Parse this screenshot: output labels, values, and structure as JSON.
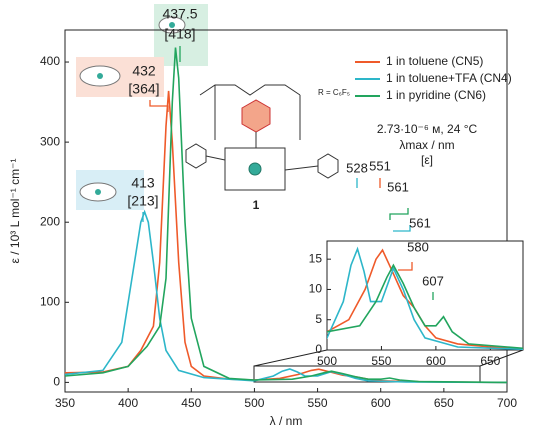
{
  "chart_data": {
    "type": "line",
    "x_label": "λ / nm",
    "y_label": "ε / 10³ L mol⁻¹ cm⁻¹",
    "xlim": [
      350,
      700
    ],
    "xticks": [
      350,
      400,
      450,
      500,
      550,
      600,
      650,
      700
    ],
    "ylim": [
      -12,
      440
    ],
    "yticks": [
      0,
      100,
      200,
      300,
      400
    ],
    "series": [
      {
        "name": "1 in toluene (CN5)",
        "color": "#ef5a2a",
        "x": [
          350,
          380,
          400,
          410,
          420,
          425,
          430,
          432,
          435,
          440,
          445,
          450,
          460,
          480,
          500,
          520,
          535,
          545,
          551,
          560,
          570,
          580,
          590,
          600,
          620,
          650,
          700
        ],
        "values": [
          12,
          13,
          20,
          40,
          70,
          150,
          320,
          364,
          300,
          150,
          50,
          20,
          8,
          4,
          3,
          5,
          10,
          15,
          16.5,
          13,
          9,
          7,
          4,
          2,
          1,
          0.5,
          0
        ]
      },
      {
        "name": "1 in toluene+TFA (CN4)",
        "color": "#2db6c9",
        "x": [
          350,
          380,
          395,
          405,
          410,
          413,
          416,
          420,
          425,
          430,
          440,
          460,
          500,
          515,
          522,
          528,
          534,
          540,
          550,
          561,
          570,
          580,
          590,
          620,
          700
        ],
        "values": [
          10,
          15,
          50,
          150,
          200,
          213,
          200,
          150,
          80,
          40,
          15,
          6,
          2,
          8,
          14,
          16.7,
          13,
          8,
          8,
          13.5,
          10,
          5,
          2,
          0.5,
          0
        ]
      },
      {
        "name": "1 in pyridine (CN6)",
        "color": "#22a55e",
        "x": [
          350,
          380,
          400,
          415,
          425,
          430,
          435,
          437.5,
          440,
          445,
          450,
          460,
          480,
          500,
          530,
          545,
          555,
          561,
          570,
          580,
          590,
          600,
          607,
          615,
          630,
          700
        ],
        "values": [
          8,
          12,
          20,
          45,
          70,
          130,
          350,
          418,
          380,
          200,
          80,
          20,
          5,
          3,
          4,
          8,
          12,
          14,
          11,
          7,
          4,
          4,
          5.5,
          3,
          1,
          0
        ]
      }
    ],
    "annotations": [
      "437.5",
      "[418]",
      "432",
      "[364]",
      "413",
      "[213]"
    ],
    "conditions": [
      "2.73·10⁻⁶ м, 24 °C",
      "λmax / nm",
      "[ε]"
    ],
    "structure": {
      "substituent": "R = C₆F₅",
      "label": "1"
    },
    "inset": {
      "xlim": [
        500,
        680
      ],
      "xticks": [
        500,
        550,
        600,
        650
      ],
      "ylim": [
        0,
        18
      ],
      "yticks": [
        0,
        5,
        10,
        15
      ],
      "annotations": [
        "528",
        "551",
        "561",
        "561",
        "580",
        "607"
      ]
    }
  }
}
